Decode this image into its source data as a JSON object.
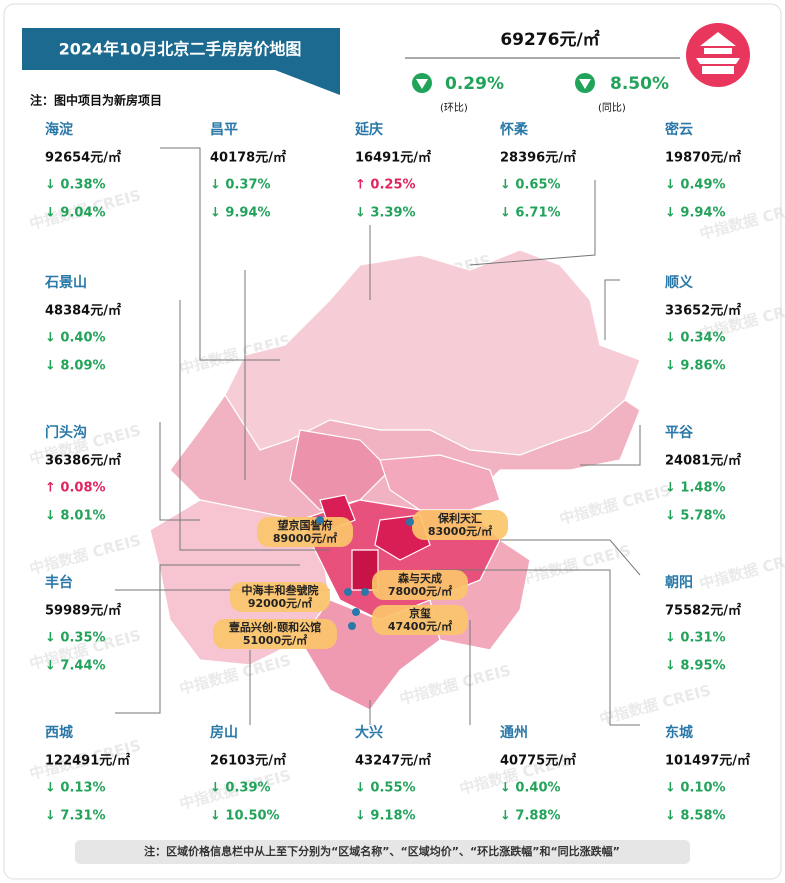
{
  "header": {
    "title": "2024年10月北京二手房房价地图",
    "note": "注：图中项目为新房项目",
    "avg_price": "69276元/㎡",
    "mom": "0.29%",
    "mom_label": "(环比)",
    "yoy": "8.50%",
    "yoy_label": "(同比)"
  },
  "districts": [
    {
      "name": "海淀",
      "price": "92654元/㎡",
      "mom": "↓ 0.38%",
      "yoy": "↓ 9.04%"
    },
    {
      "name": "昌平",
      "price": "40178元/㎡",
      "mom": "↓ 0.37%",
      "yoy": "↓ 9.94%"
    },
    {
      "name": "延庆",
      "price": "16491元/㎡",
      "mom": "↑ 0.25%",
      "yoy": "↓ 3.39%"
    },
    {
      "name": "怀柔",
      "price": "28396元/㎡",
      "mom": "↓ 0.65%",
      "yoy": "↓ 6.71%"
    },
    {
      "name": "密云",
      "price": "19870元/㎡",
      "mom": "↓ 0.49%",
      "yoy": "↓ 9.94%"
    },
    {
      "name": "石景山",
      "price": "48384元/㎡",
      "mom": "↓ 0.40%",
      "yoy": "↓ 8.09%"
    },
    {
      "name": "门头沟",
      "price": "36386元/㎡",
      "mom": "↑ 0.08%",
      "yoy": "↓ 8.01%"
    },
    {
      "name": "丰台",
      "price": "59989元/㎡",
      "mom": "↓ 0.35%",
      "yoy": "↓ 7.44%"
    },
    {
      "name": "顺义",
      "price": "33652元/㎡",
      "mom": "↓ 0.34%",
      "yoy": "↓ 9.86%"
    },
    {
      "name": "平谷",
      "price": "24081元/㎡",
      "mom": "↓ 1.48%",
      "yoy": "↓ 5.78%"
    },
    {
      "name": "朝阳",
      "price": "75582元/㎡",
      "mom": "↓ 0.31%",
      "yoy": "↓ 8.95%"
    },
    {
      "name": "西城",
      "price": "122491元/㎡",
      "mom": "↓ 0.13%",
      "yoy": "↓ 7.31%"
    },
    {
      "name": "房山",
      "price": "26103元/㎡",
      "mom": "↓ 0.39%",
      "yoy": "↓ 10.50%"
    },
    {
      "name": "大兴",
      "price": "43247元/㎡",
      "mom": "↓ 0.55%",
      "yoy": "↓ 9.18%"
    },
    {
      "name": "通州",
      "price": "40775元/㎡",
      "mom": "↓ 0.40%",
      "yoy": "↓ 7.88%"
    },
    {
      "name": "东城",
      "price": "101497元/㎡",
      "mom": "↓ 0.10%",
      "yoy": "↓ 8.58%"
    }
  ],
  "projects": [
    {
      "name": "望京国誉府",
      "price": "89000元/㎡"
    },
    {
      "name": "保利天汇",
      "price": "83000元/㎡"
    },
    {
      "name": "森与天成",
      "price": "78000元/㎡"
    },
    {
      "name": "中海丰和叁號院",
      "price": "92000元/㎡"
    },
    {
      "name": "京玺",
      "price": "47400元/㎡"
    },
    {
      "name": "壹品兴创·颐和公馆",
      "price": "51000元/㎡"
    }
  ],
  "watermark": "中指数据 CREIS",
  "footer": {
    "note": "注：区域价格信息栏中从上至下分别为“区域名称”、“区域均价”、“环比涨跌幅”和“同比涨跌幅”"
  }
}
